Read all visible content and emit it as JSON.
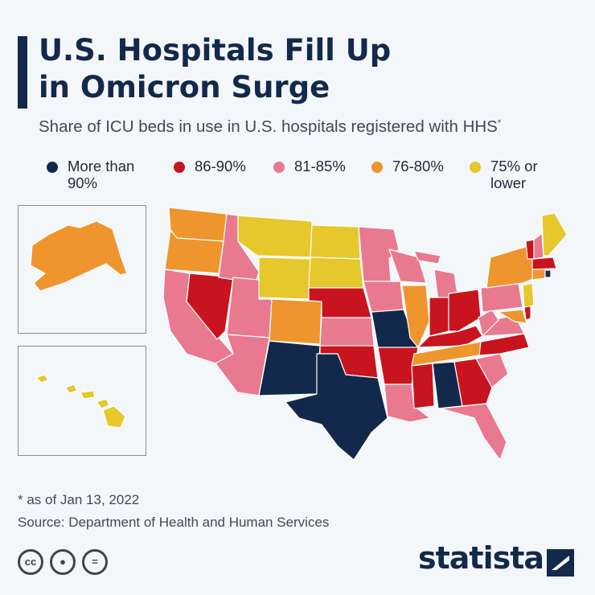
{
  "header": {
    "title_line1": "U.S. Hospitals Fill Up",
    "title_line2": "in Omicron Surge",
    "subtitle": "Share of ICU beds in use in U.S. hospitals registered with HHS",
    "subtitle_mark": "*"
  },
  "legend": [
    {
      "line1": "More than",
      "line2": "90%",
      "color": "#13294b"
    },
    {
      "line1": "86-90%",
      "line2": "",
      "color": "#c8141e"
    },
    {
      "line1": "81-85%",
      "line2": "",
      "color": "#e9798f"
    },
    {
      "line1": "76-80%",
      "line2": "",
      "color": "#ee952d"
    },
    {
      "line1": "75% or",
      "line2": "lower",
      "color": "#e6c72c"
    }
  ],
  "map_categories": {
    "more_than_90": [
      "New Mexico",
      "Texas",
      "Missouri",
      "Alabama",
      "Rhode Island"
    ],
    "86_90": [
      "Nevada",
      "Nebraska",
      "Oklahoma",
      "Arkansas",
      "Mississippi",
      "Georgia",
      "Indiana",
      "Ohio",
      "Kentucky",
      "North Carolina",
      "Delaware",
      "Vermont",
      "Massachusetts"
    ],
    "81_85": [
      "California",
      "Idaho",
      "Utah",
      "Arizona",
      "Kansas",
      "Minnesota",
      "Iowa",
      "Wisconsin",
      "Michigan",
      "Louisiana",
      "Florida",
      "South Carolina",
      "Virginia",
      "West Virginia",
      "Pennsylvania",
      "New Hampshire"
    ],
    "76_80": [
      "Alaska",
      "Washington",
      "Oregon",
      "Colorado",
      "Illinois",
      "Tennessee",
      "New York",
      "Connecticut",
      "Maryland"
    ],
    "75_or_lower": [
      "Hawaii",
      "Montana",
      "Wyoming",
      "North Dakota",
      "South Dakota",
      "Maine",
      "New Jersey"
    ]
  },
  "footer": {
    "note": "* as of Jan 13, 2022",
    "source": "Source: Department of Health and Human Services",
    "brand": "statista"
  },
  "icons": {
    "cc": "cc",
    "by": "person",
    "nd": "="
  }
}
